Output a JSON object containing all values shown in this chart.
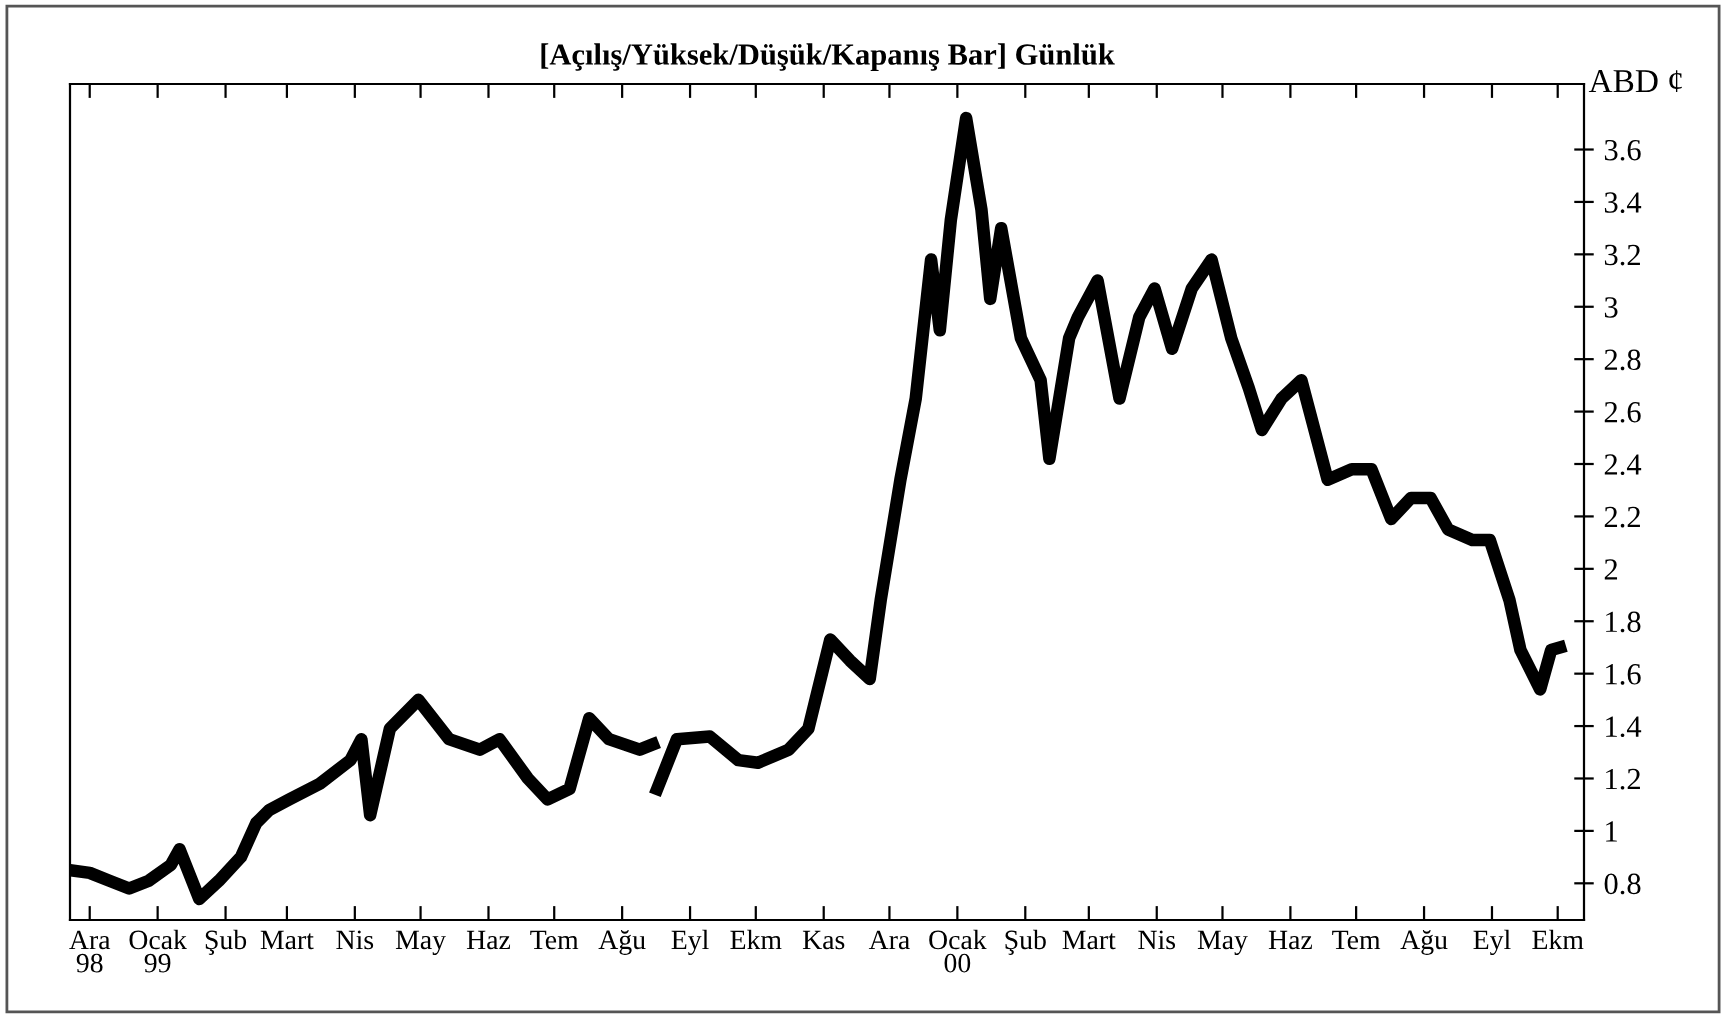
{
  "chart_data": {
    "type": "line",
    "title": "[Açılış/Yüksek/Düşük/Kapanış Bar] Günlük",
    "ylabel": "ABD ¢",
    "xlim": [
      "1998-11-22",
      "2000-10-13"
    ],
    "ylim": [
      0.66,
      3.85
    ],
    "xticks": [
      {
        "value": "1998-12-01",
        "label": "Ara\n98"
      },
      {
        "value": "1999-01-01",
        "label": "Ocak\n99"
      },
      {
        "value": "1999-02-01",
        "label": "Şub"
      },
      {
        "value": "1999-03-01",
        "label": "Mart"
      },
      {
        "value": "1999-04-01",
        "label": "Nis"
      },
      {
        "value": "1999-05-01",
        "label": "May"
      },
      {
        "value": "1999-06-01",
        "label": "Haz"
      },
      {
        "value": "1999-07-01",
        "label": "Tem"
      },
      {
        "value": "1999-08-01",
        "label": "Ağu"
      },
      {
        "value": "1999-09-01",
        "label": "Eyl"
      },
      {
        "value": "1999-10-01",
        "label": "Ekm"
      },
      {
        "value": "1999-11-01",
        "label": "Kas"
      },
      {
        "value": "1999-12-01",
        "label": "Ara"
      },
      {
        "value": "2000-01-01",
        "label": "Ocak\n00"
      },
      {
        "value": "2000-02-01",
        "label": "Şub"
      },
      {
        "value": "2000-03-01",
        "label": "Mart"
      },
      {
        "value": "2000-04-01",
        "label": "Nis"
      },
      {
        "value": "2000-05-01",
        "label": "May"
      },
      {
        "value": "2000-06-01",
        "label": "Haz"
      },
      {
        "value": "2000-07-01",
        "label": "Tem"
      },
      {
        "value": "2000-08-01",
        "label": "Ağu"
      },
      {
        "value": "2000-09-01",
        "label": "Eyl"
      },
      {
        "value": "2000-10-01",
        "label": "Ekm"
      }
    ],
    "yticks": [
      0.8,
      1,
      1.2,
      1.4,
      1.6,
      1.8,
      2,
      2.2,
      2.4,
      2.6,
      2.8,
      3,
      3.2,
      3.4,
      3.6
    ],
    "grid": false,
    "series": [
      {
        "color": "#000000",
        "x": [
          "1998-11-22",
          "1998-12-01",
          "1998-12-10",
          "1998-12-19",
          "1998-12-28",
          "1999-01-07",
          "1999-01-11",
          "1999-01-20",
          "1999-01-29",
          "1999-02-08",
          "1999-02-15",
          "1999-02-21",
          "1999-03-02",
          "1999-03-16",
          "1999-03-30",
          "1999-04-04",
          "1999-04-08",
          "1999-04-17",
          "1999-04-30",
          "1999-05-14",
          "1999-05-28",
          "1999-06-06",
          "1999-06-19",
          "1999-06-28",
          "1999-07-08",
          "1999-07-17",
          "1999-07-26",
          "1999-08-09",
          "1999-08-15",
          "1999-08-16",
          "1999-08-17",
          "1999-08-26",
          "1999-09-10",
          "1999-09-23",
          "1999-10-02",
          "1999-10-16",
          "1999-10-25",
          "1999-11-04",
          "1999-11-13",
          "1999-11-22",
          "1999-11-27",
          "1999-12-06",
          "1999-12-13",
          "1999-12-20",
          "1999-12-24",
          "1999-12-29",
          "2000-01-05",
          "2000-01-12",
          "2000-01-16",
          "2000-01-21",
          "2000-01-30",
          "2000-02-08",
          "2000-02-12",
          "2000-02-21",
          "2000-02-25",
          "2000-03-05",
          "2000-03-15",
          "2000-03-24",
          "2000-03-31",
          "2000-04-08",
          "2000-04-17",
          "2000-04-26",
          "2000-05-05",
          "2000-05-13",
          "2000-05-19",
          "2000-05-28",
          "2000-06-06",
          "2000-06-18",
          "2000-06-29",
          "2000-07-08",
          "2000-07-17",
          "2000-07-26",
          "2000-08-04",
          "2000-08-12",
          "2000-08-23",
          "2000-08-31",
          "2000-09-09",
          "2000-09-14",
          "2000-09-23",
          "2000-09-28",
          "2000-10-02"
        ],
        "values": [
          0.85,
          0.84,
          0.81,
          0.78,
          0.81,
          0.87,
          0.93,
          0.74,
          0.81,
          0.9,
          1.03,
          1.08,
          1.12,
          1.18,
          1.27,
          1.35,
          1.06,
          1.39,
          1.5,
          1.35,
          1.31,
          1.35,
          1.2,
          1.12,
          1.16,
          1.43,
          1.35,
          1.31,
          1.33,
          null,
          1.16,
          1.35,
          1.36,
          1.27,
          1.26,
          1.31,
          1.39,
          1.73,
          1.65,
          1.58,
          1.88,
          2.34,
          2.65,
          3.18,
          2.91,
          3.33,
          3.72,
          3.37,
          3.03,
          3.3,
          2.88,
          2.72,
          2.42,
          2.88,
          2.96,
          3.1,
          2.65,
          2.96,
          3.07,
          2.84,
          3.07,
          3.18,
          2.88,
          2.69,
          2.53,
          2.65,
          2.72,
          2.34,
          2.38,
          2.38,
          2.19,
          2.27,
          2.27,
          2.15,
          2.11,
          2.11,
          1.88,
          1.69,
          1.54,
          1.69,
          1.7
        ]
      }
    ]
  }
}
